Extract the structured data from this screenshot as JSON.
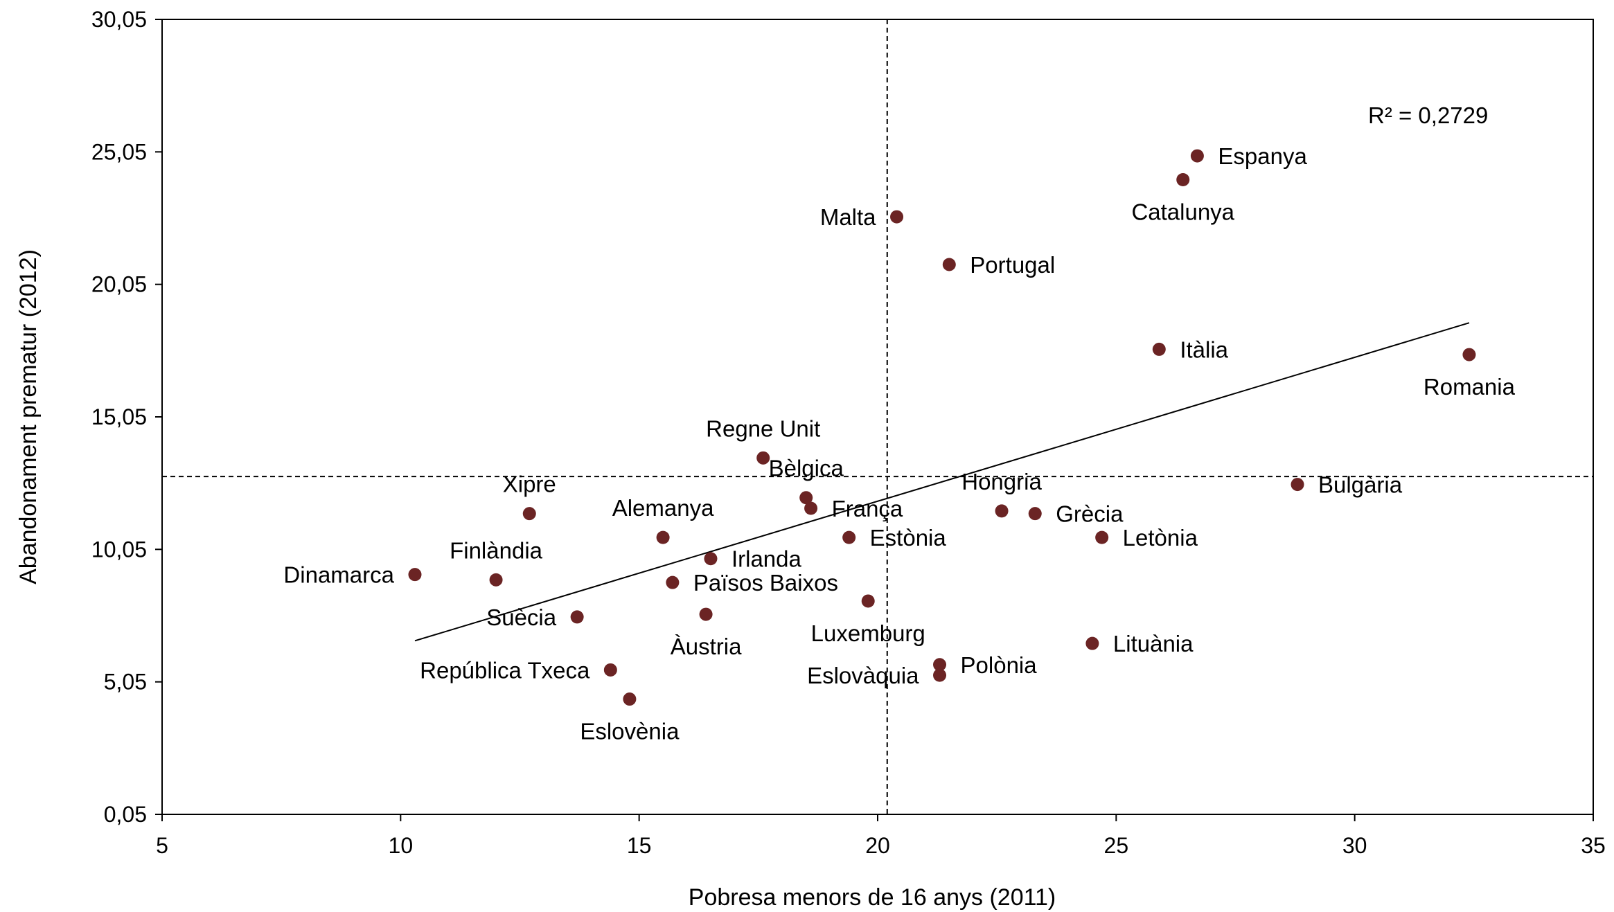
{
  "chart_data": {
    "type": "scatter",
    "title": "",
    "xlabel": "Pobresa menors de 16 anys (2011)",
    "ylabel": "Abandonament prematur (2012)",
    "xlim": [
      5,
      35
    ],
    "ylim": [
      0.05,
      30.05
    ],
    "x_ticks": [
      5,
      10,
      15,
      20,
      25,
      30,
      35
    ],
    "x_tick_labels": [
      "5",
      "10",
      "15",
      "20",
      "25",
      "30",
      "35"
    ],
    "y_ticks": [
      0.05,
      5.05,
      10.05,
      15.05,
      20.05,
      25.05,
      30.05
    ],
    "y_tick_labels": [
      "0,05",
      "5,05",
      "10,05",
      "15,05",
      "20,05",
      "25,05",
      "30,05"
    ],
    "grid": false,
    "legend": "none",
    "marker_color": "#6b2424",
    "reference_lines": {
      "x": 20.2,
      "y": 12.8,
      "style": "dashed"
    },
    "trendline": {
      "x": [
        10.3,
        32.4
      ],
      "y": [
        6.6,
        18.6
      ]
    },
    "r_squared_label": "R² = 0,2729",
    "points": [
      {
        "label": "Espanya",
        "x": 26.7,
        "y": 24.9
      },
      {
        "label": "Catalunya",
        "x": 26.4,
        "y": 24.0
      },
      {
        "label": "Malta",
        "x": 20.4,
        "y": 22.6
      },
      {
        "label": "Portugal",
        "x": 21.5,
        "y": 20.8
      },
      {
        "label": "Itàlia",
        "x": 25.9,
        "y": 17.6
      },
      {
        "label": "Romania",
        "x": 32.4,
        "y": 17.4
      },
      {
        "label": "Regne Unit",
        "x": 17.6,
        "y": 13.5
      },
      {
        "label": "Bèlgica",
        "x": 18.5,
        "y": 12.0
      },
      {
        "label": "Bulgària",
        "x": 28.8,
        "y": 12.5
      },
      {
        "label": "Hongria",
        "x": 22.6,
        "y": 11.5
      },
      {
        "label": "Grècia",
        "x": 23.3,
        "y": 11.4
      },
      {
        "label": "França",
        "x": 18.6,
        "y": 11.6
      },
      {
        "label": "Xipre",
        "x": 12.7,
        "y": 11.4
      },
      {
        "label": "Alemanya",
        "x": 15.5,
        "y": 10.5
      },
      {
        "label": "Estònia",
        "x": 19.4,
        "y": 10.5
      },
      {
        "label": "Letònia",
        "x": 24.7,
        "y": 10.5
      },
      {
        "label": "Irlanda",
        "x": 16.5,
        "y": 9.7
      },
      {
        "label": "Finlàndia",
        "x": 12.0,
        "y": 8.9
      },
      {
        "label": "Dinamarca",
        "x": 10.3,
        "y": 9.1
      },
      {
        "label": "Països Baixos",
        "x": 15.7,
        "y": 8.8
      },
      {
        "label": "Luxemburg",
        "x": 19.8,
        "y": 8.1
      },
      {
        "label": "Suècia",
        "x": 13.7,
        "y": 7.5
      },
      {
        "label": "Àustria",
        "x": 16.4,
        "y": 7.6
      },
      {
        "label": "Lituània",
        "x": 24.5,
        "y": 6.5
      },
      {
        "label": "Polònia",
        "x": 21.3,
        "y": 5.7
      },
      {
        "label": "Eslovàquia",
        "x": 21.3,
        "y": 5.3
      },
      {
        "label": "República Txeca",
        "x": 14.4,
        "y": 5.5
      },
      {
        "label": "Eslovènia",
        "x": 14.8,
        "y": 4.4
      }
    ]
  }
}
